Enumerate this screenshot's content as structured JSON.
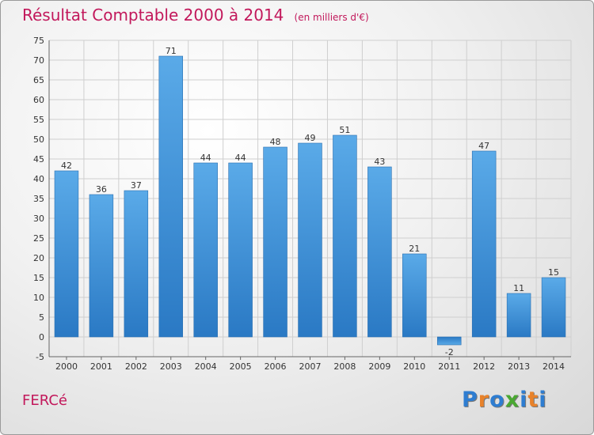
{
  "chart_data": {
    "type": "bar",
    "title": "Résultat Comptable 2000 à 2014",
    "subtitle": "(en milliers d'€)",
    "categories": [
      "2000",
      "2001",
      "2002",
      "2003",
      "2004",
      "2005",
      "2006",
      "2007",
      "2008",
      "2009",
      "2010",
      "2011",
      "2012",
      "2013",
      "2014"
    ],
    "values": [
      42,
      36,
      37,
      71,
      44,
      44,
      48,
      49,
      51,
      43,
      21,
      -2,
      47,
      11,
      15
    ],
    "ylim": [
      -5,
      75
    ],
    "yticks": [
      -5,
      0,
      5,
      10,
      15,
      20,
      25,
      30,
      35,
      40,
      45,
      50,
      55,
      60,
      65,
      70,
      75
    ],
    "grid": true,
    "xlabel": "",
    "ylabel": "",
    "bar_color": "#3d8fd6"
  },
  "commune": "FERCé",
  "logo": {
    "letters": [
      "P",
      "r",
      "o",
      "x",
      "i",
      "t",
      "i"
    ],
    "colors": [
      "#2e7dd1",
      "#e8822a",
      "#2e7dd1",
      "#4aa832",
      "#2e7dd1",
      "#e8822a",
      "#2e7dd1"
    ]
  }
}
